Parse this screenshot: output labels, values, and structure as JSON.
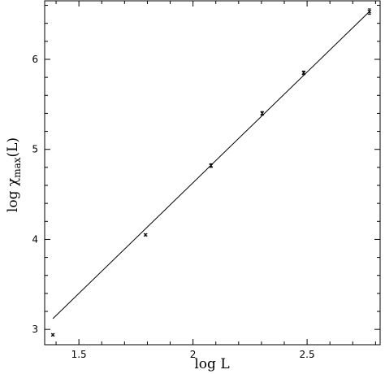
{
  "chart_data": {
    "type": "scatter",
    "xlabel": "log L",
    "ylabel_parts": {
      "base": "log χ",
      "subscript": "max",
      "suffix": "(L)"
    },
    "xlim": [
      1.35,
      2.82
    ],
    "ylim": [
      2.83,
      6.65
    ],
    "x_ticks": [
      1.5,
      2,
      2.5
    ],
    "x_tick_labels": [
      "1.5",
      "2",
      "2.5"
    ],
    "y_ticks": [
      3,
      4,
      5,
      6
    ],
    "y_tick_labels": [
      "3",
      "4",
      "5",
      "6"
    ],
    "grid": false,
    "legend": "none",
    "series": [
      {
        "marker": "x",
        "x": [
          1.386,
          1.792,
          2.079,
          2.303,
          2.485,
          2.773
        ],
        "y": [
          2.94,
          4.05,
          4.82,
          5.4,
          5.85,
          6.53
        ],
        "yerr": [
          0.01,
          0.01,
          0.02,
          0.02,
          0.02,
          0.03
        ]
      }
    ],
    "fit_line": {
      "x": [
        1.386,
        2.773
      ],
      "y": [
        3.12,
        6.53
      ]
    }
  }
}
